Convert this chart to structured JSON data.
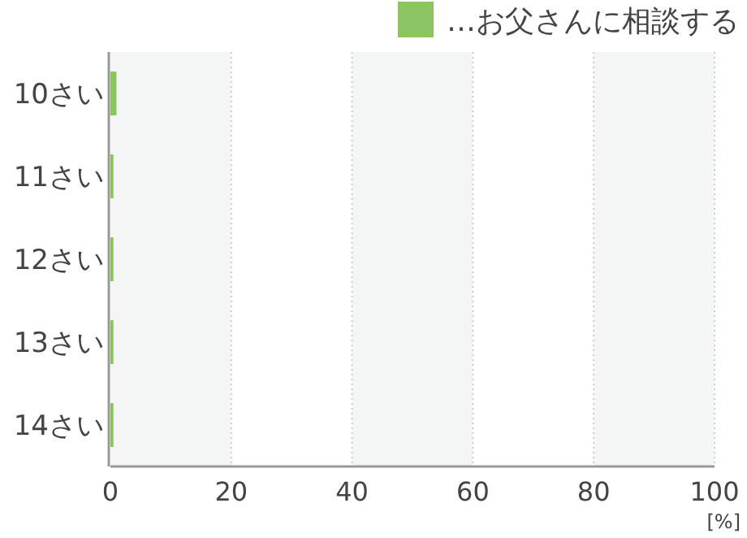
{
  "chart_data": {
    "type": "bar",
    "orientation": "horizontal",
    "xlabel": "[%]",
    "categories": [
      "10さい",
      "11さい",
      "12さい",
      "13さい",
      "14さい"
    ],
    "series": [
      {
        "name": "…お父さんに相談する",
        "color": "#8cc363",
        "values": [
          1,
          0.5,
          0.5,
          0.5,
          0.5
        ]
      }
    ],
    "xlim": [
      0,
      100
    ],
    "xticks": [
      0,
      20,
      40,
      60,
      80,
      100
    ],
    "grid": "x",
    "legend": "top right",
    "bands": [
      {
        "axis": "x",
        "from": 0,
        "to": 20,
        "color": "#f4f6f6"
      },
      {
        "axis": "x",
        "from": 40,
        "to": 60,
        "color": "#f4f6f6"
      },
      {
        "axis": "x",
        "from": 80,
        "to": 100,
        "color": "#f4f6f6"
      }
    ]
  }
}
